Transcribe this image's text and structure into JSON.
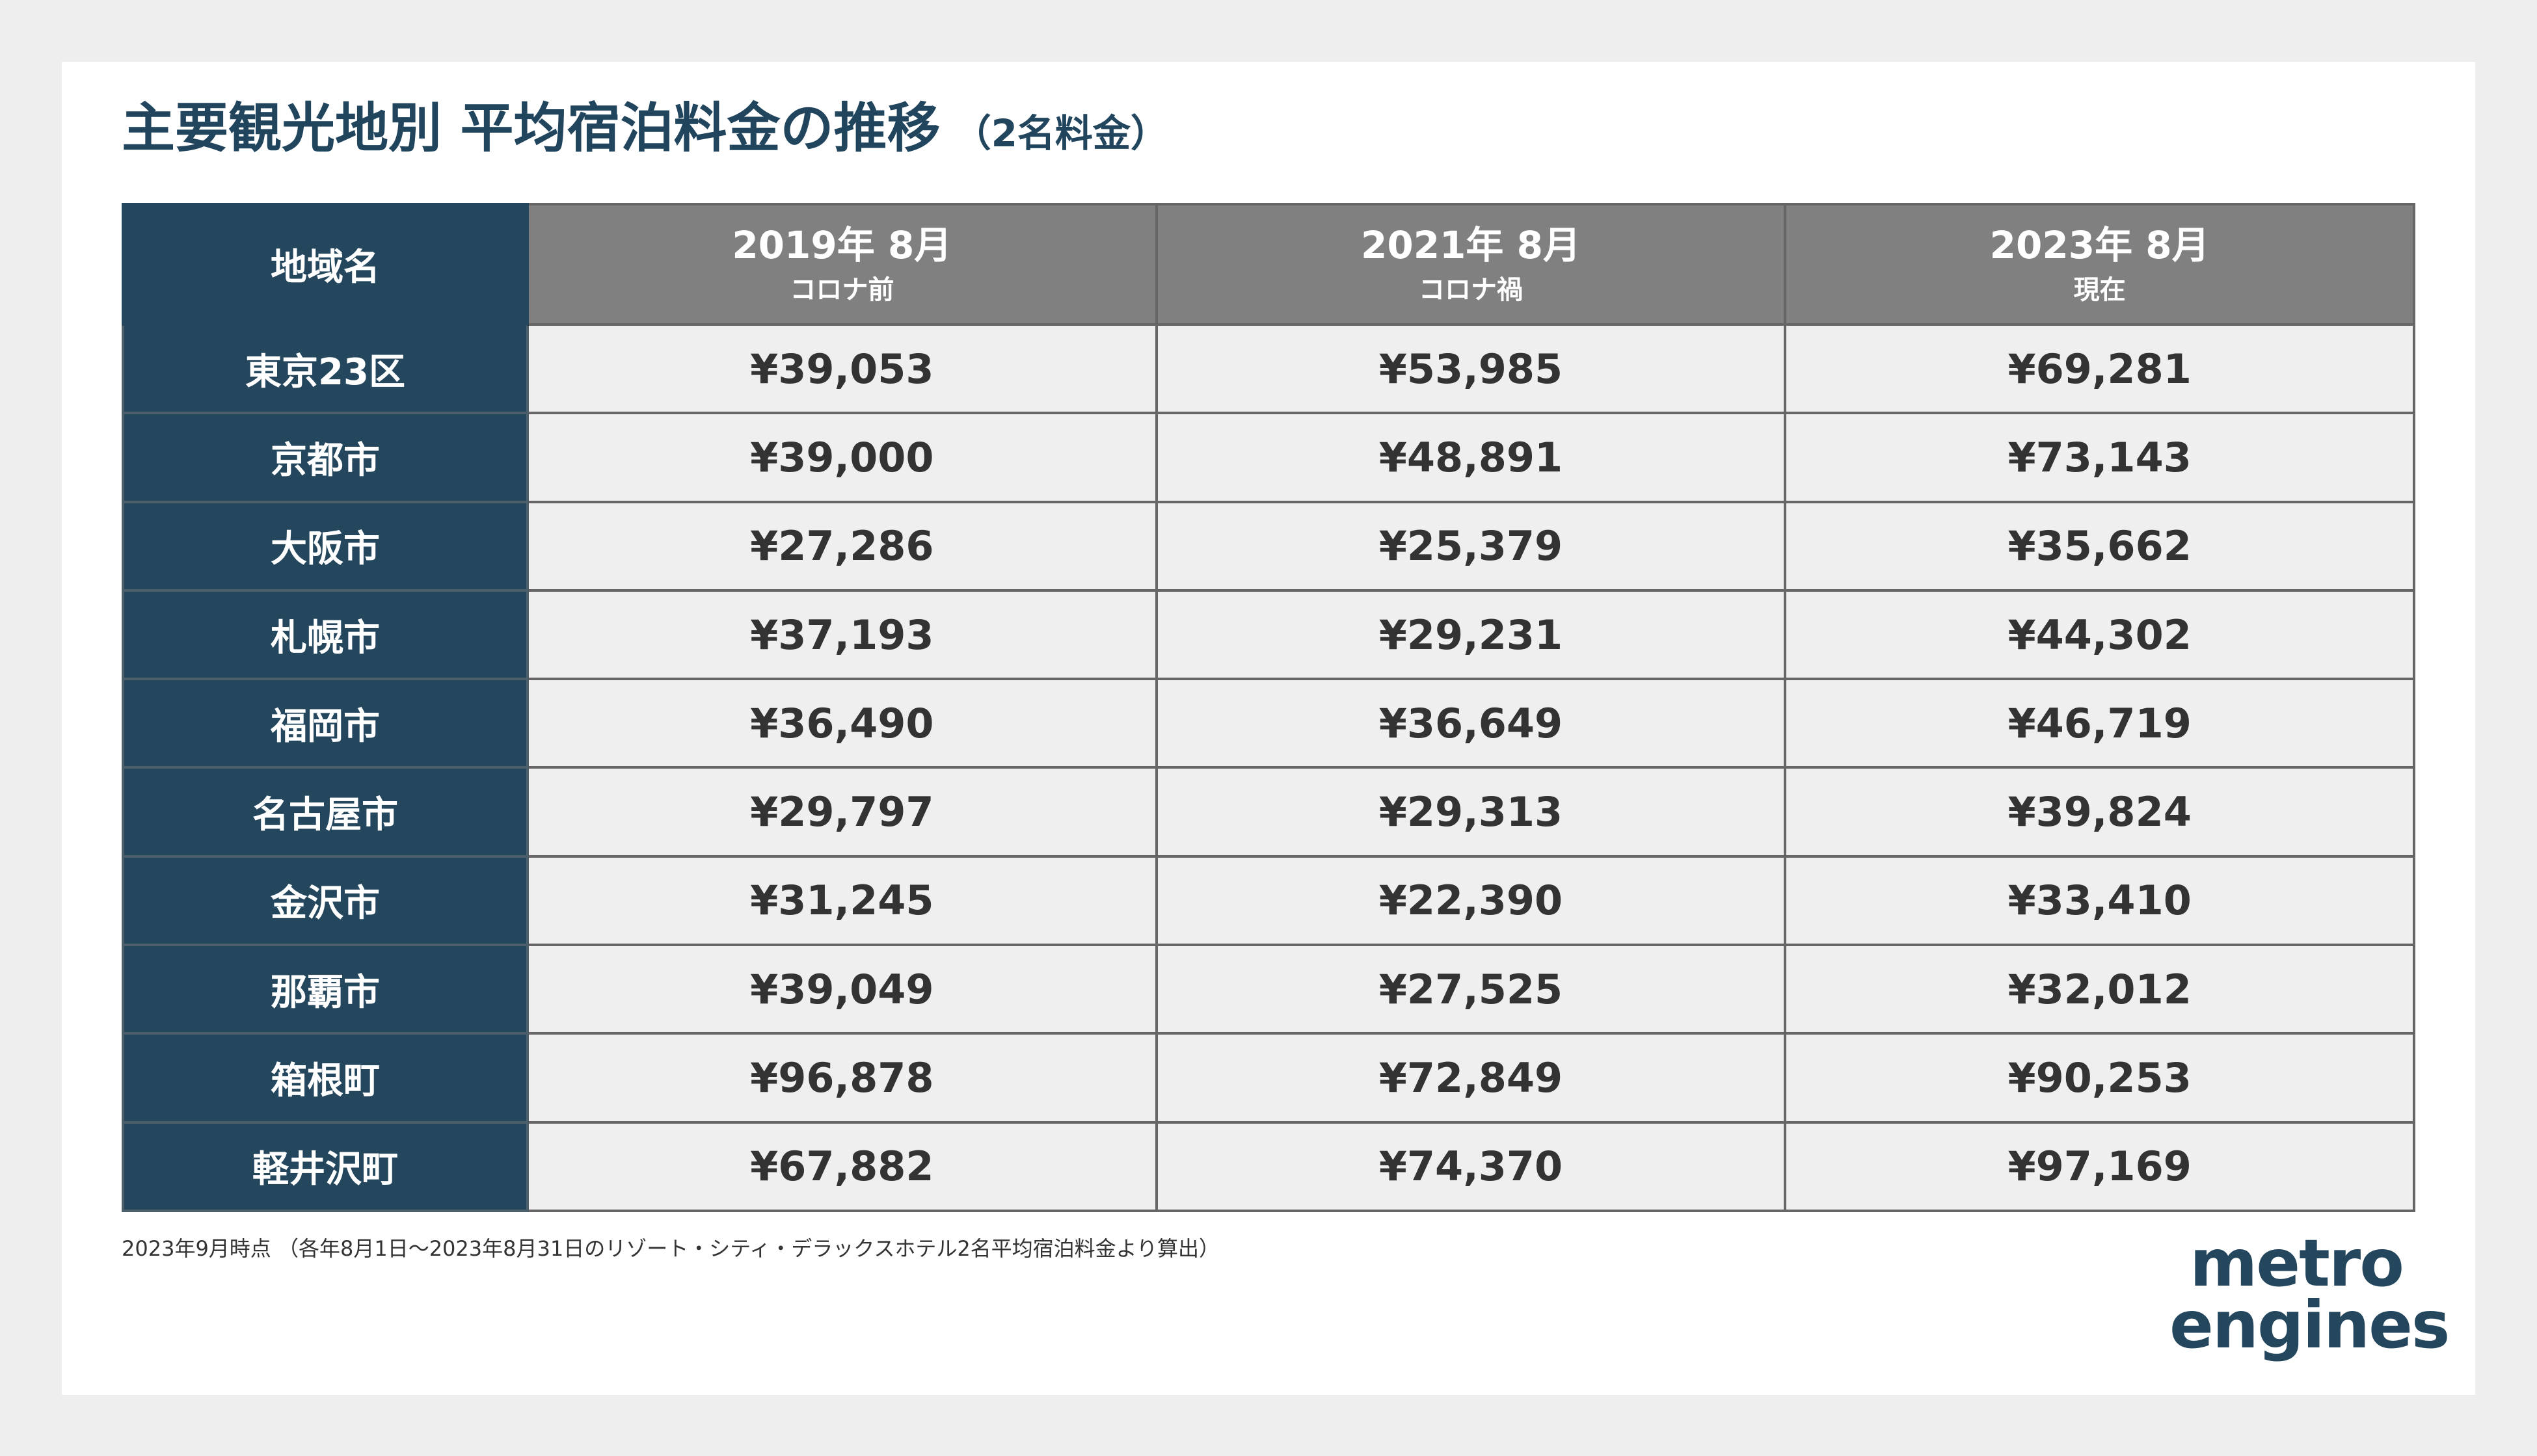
{
  "title": {
    "main": "主要観光地別 平均宿泊料金の推移",
    "sub": "（2名料金）"
  },
  "table": {
    "header": {
      "region": "地域名",
      "columns": [
        {
          "year": "2019年 8月",
          "note": "コロナ前"
        },
        {
          "year": "2021年 8月",
          "note": "コロナ禍"
        },
        {
          "year": "2023年 8月",
          "note": "現在"
        }
      ]
    },
    "rows": [
      {
        "region": "東京23区",
        "values": [
          "¥39,053",
          "¥53,985",
          "¥69,281"
        ]
      },
      {
        "region": "京都市",
        "values": [
          "¥39,000",
          "¥48,891",
          "¥73,143"
        ]
      },
      {
        "region": "大阪市",
        "values": [
          "¥27,286",
          "¥25,379",
          "¥35,662"
        ]
      },
      {
        "region": "札幌市",
        "values": [
          "¥37,193",
          "¥29,231",
          "¥44,302"
        ]
      },
      {
        "region": "福岡市",
        "values": [
          "¥36,490",
          "¥36,649",
          "¥46,719"
        ]
      },
      {
        "region": "名古屋市",
        "values": [
          "¥29,797",
          "¥29,313",
          "¥39,824"
        ]
      },
      {
        "region": "金沢市",
        "values": [
          "¥31,245",
          "¥22,390",
          "¥33,410"
        ]
      },
      {
        "region": "那覇市",
        "values": [
          "¥39,049",
          "¥27,525",
          "¥32,012"
        ]
      },
      {
        "region": "箱根町",
        "values": [
          "¥96,878",
          "¥72,849",
          "¥90,253"
        ]
      },
      {
        "region": "軽井沢町",
        "values": [
          "¥67,882",
          "¥74,370",
          "¥97,169"
        ]
      }
    ]
  },
  "footnote": "2023年9月時点 （各年8月1日〜2023年8月31日のリゾート・シティ・デラックスホテル2名平均宿泊料金より算出）",
  "logo": {
    "line1": "metro",
    "line2": "engines"
  },
  "colors": {
    "navy": "#24475e",
    "header_gray": "#808080",
    "cell_bg": "#efefef"
  }
}
